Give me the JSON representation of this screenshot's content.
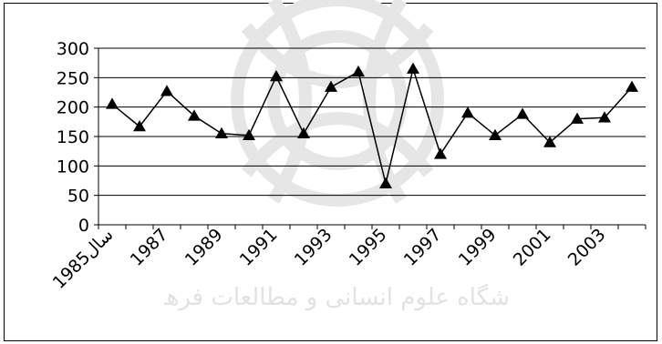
{
  "chart_data": {
    "type": "line",
    "x": [
      1985,
      1986,
      1987,
      1988,
      1989,
      1990,
      1991,
      1992,
      1993,
      1994,
      1995,
      1996,
      1997,
      1998,
      1999,
      2000,
      2001,
      2002,
      2003,
      2004
    ],
    "series": [
      {
        "values": [
          205,
          167,
          227,
          185,
          155,
          152,
          252,
          155,
          234,
          260,
          70,
          265,
          120,
          190,
          152,
          188,
          140,
          180,
          182,
          234
        ]
      }
    ],
    "x_tick_labels": [
      "1985سال",
      "1987",
      "1989",
      "1991",
      "1993",
      "1995",
      "1997",
      "1999",
      "2001",
      "2003"
    ],
    "y_ticks": [
      0,
      50,
      100,
      150,
      200,
      250,
      300
    ],
    "ylim": [
      0,
      300
    ],
    "grid": true,
    "marker": "triangle",
    "line_color": "#000000",
    "watermark_text": "پرو شگاه علوم انسانی و مطالعات فرهنگی"
  }
}
